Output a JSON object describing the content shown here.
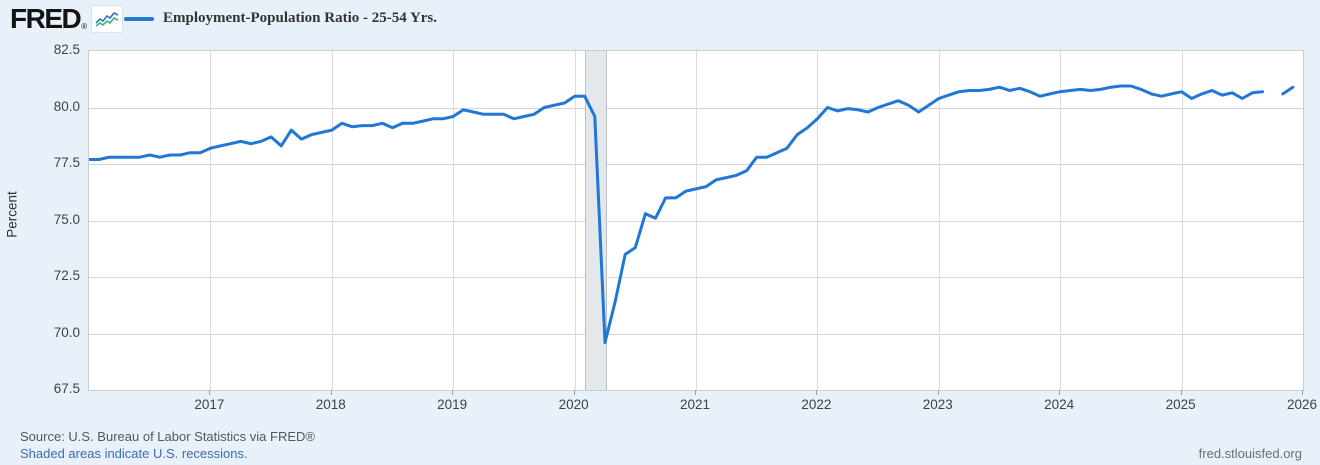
{
  "header": {
    "logo_text": "FRED",
    "logo_registered": "®",
    "legend_label": "Employment-Population Ratio - 25-54 Yrs."
  },
  "colors": {
    "series_line": "#2077d4",
    "page_background": "#e8f1f9",
    "plot_background": "#ffffff",
    "recession_band": "#e4e8eb",
    "gridline": "#d6d6d6",
    "link_blue": "#3e6cb0",
    "sparkline_blue": "#3573b9",
    "sparkline_green": "#3fae7e"
  },
  "y_axis": {
    "title": "Percent",
    "tick_labels": [
      "82.5",
      "80.0",
      "77.5",
      "75.0",
      "72.5",
      "70.0",
      "67.5"
    ]
  },
  "x_axis": {
    "tick_labels": [
      "2017",
      "2018",
      "2019",
      "2020",
      "2021",
      "2022",
      "2023",
      "2024",
      "2025",
      "2026"
    ]
  },
  "footer": {
    "source": "Source: U.S. Bureau of Labor Statistics via FRED®",
    "recessions_note": "Shaded areas indicate U.S. recessions.",
    "site": "fred.stlouisfed.org"
  },
  "chart_data": {
    "type": "line",
    "title": "Employment-Population Ratio - 25-54 Yrs.",
    "ylabel": "Percent",
    "ylim": [
      67.5,
      82.5
    ],
    "y_ticks": [
      82.5,
      80.0,
      77.5,
      75.0,
      72.5,
      70.0,
      67.5
    ],
    "x_range_start": "2016-01",
    "x_range_end": "2026-01",
    "x_year_ticks": [
      2017,
      2018,
      2019,
      2020,
      2021,
      2022,
      2023,
      2024,
      2025,
      2026
    ],
    "frequency": "monthly",
    "grid": true,
    "legend_position": "top-left",
    "recession_bands": [
      {
        "start": "2020-02",
        "end": "2020-04"
      }
    ],
    "missing_months": [
      "2025-10"
    ],
    "series": [
      {
        "name": "Employment-Population Ratio - 25-54 Yrs.",
        "color": "#2077d4",
        "start_month": "2016-01",
        "values": [
          77.7,
          77.7,
          77.8,
          77.8,
          77.8,
          77.8,
          77.9,
          77.8,
          77.9,
          77.9,
          78.0,
          78.0,
          78.2,
          78.3,
          78.4,
          78.5,
          78.4,
          78.5,
          78.7,
          78.3,
          79.0,
          78.6,
          78.8,
          78.9,
          79.0,
          79.3,
          79.15,
          79.2,
          79.2,
          79.3,
          79.1,
          79.3,
          79.3,
          79.4,
          79.5,
          79.5,
          79.6,
          79.9,
          79.8,
          79.7,
          79.7,
          79.7,
          79.5,
          79.6,
          79.7,
          80.0,
          80.1,
          80.2,
          80.5,
          80.5,
          79.6,
          69.6,
          71.4,
          73.5,
          73.8,
          75.3,
          75.1,
          76.0,
          76.0,
          76.3,
          76.4,
          76.5,
          76.8,
          76.9,
          77.0,
          77.2,
          77.8,
          77.8,
          78.0,
          78.2,
          78.8,
          79.1,
          79.5,
          80.0,
          79.85,
          79.95,
          79.9,
          79.8,
          80.0,
          80.15,
          80.3,
          80.1,
          79.8,
          80.1,
          80.4,
          80.55,
          80.7,
          80.75,
          80.75,
          80.8,
          80.9,
          80.75,
          80.85,
          80.7,
          80.5,
          80.6,
          80.7,
          80.75,
          80.8,
          80.75,
          80.8,
          80.9,
          80.95,
          80.95,
          80.8,
          80.6,
          80.5,
          80.6,
          80.7,
          80.4,
          80.6,
          80.75,
          80.55,
          80.65,
          80.4,
          80.65,
          80.7,
          null,
          80.6,
          80.9
        ]
      }
    ]
  }
}
